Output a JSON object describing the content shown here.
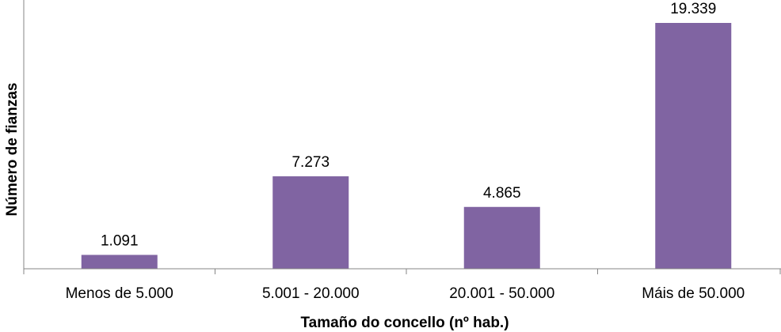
{
  "chart_data": {
    "type": "bar",
    "categories": [
      "Menos de 5.000",
      "5.001 - 20.000",
      "20.001 - 50.000",
      "Máis de 50.000"
    ],
    "values": [
      1091,
      7273,
      4865,
      19339
    ],
    "value_labels": [
      "1.091",
      "7.273",
      "4.865",
      "19.339"
    ],
    "xlabel": "Tamaño do concello (nº hab.)",
    "ylabel": "Número de fianzas",
    "ylim": [
      0,
      19339
    ],
    "bar_color": "#8064a2",
    "axis_color": "#868686",
    "grid": false,
    "legend": "none"
  }
}
